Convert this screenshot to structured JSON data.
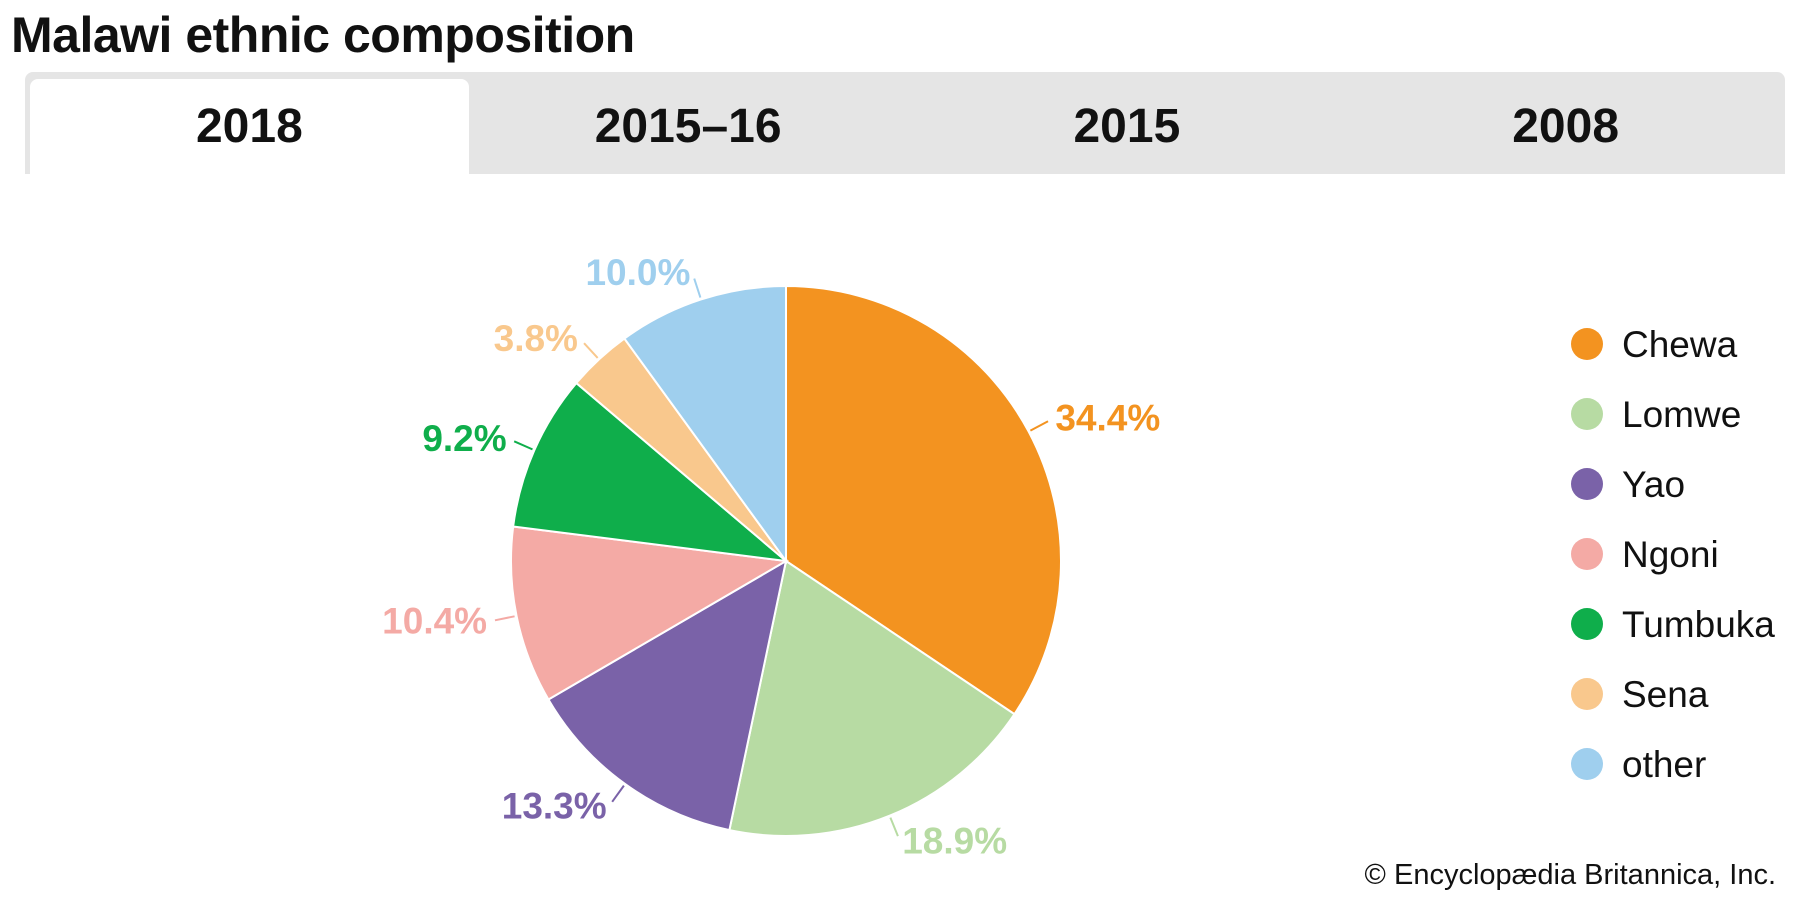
{
  "title": "Malawi ethnic composition",
  "tabs": [
    {
      "label": "2018",
      "active": true
    },
    {
      "label": "2015–16",
      "active": false
    },
    {
      "label": "2015",
      "active": false
    },
    {
      "label": "2008",
      "active": false
    }
  ],
  "credit": "© Encyclopædia Britannica, Inc.",
  "chart_data": {
    "type": "pie",
    "title": "Malawi ethnic composition",
    "legend_position": "right",
    "start_angle": "12 o'clock, clockwise",
    "slices": [
      {
        "label": "Chewa",
        "value": 34.4,
        "display": "34.4%",
        "color": "#f39320"
      },
      {
        "label": "Lomwe",
        "value": 18.9,
        "display": "18.9%",
        "color": "#b7dba3"
      },
      {
        "label": "Yao",
        "value": 13.3,
        "display": "13.3%",
        "color": "#7a62a8"
      },
      {
        "label": "Ngoni",
        "value": 10.4,
        "display": "10.4%",
        "color": "#f4aaa5"
      },
      {
        "label": "Tumbuka",
        "value": 9.2,
        "display": "9.2%",
        "color": "#0fae4b"
      },
      {
        "label": "Sena",
        "value": 3.8,
        "display": "3.8%",
        "color": "#f9c88d"
      },
      {
        "label": "other",
        "value": 10.0,
        "display": "10.0%",
        "color": "#9fcfee"
      }
    ]
  }
}
